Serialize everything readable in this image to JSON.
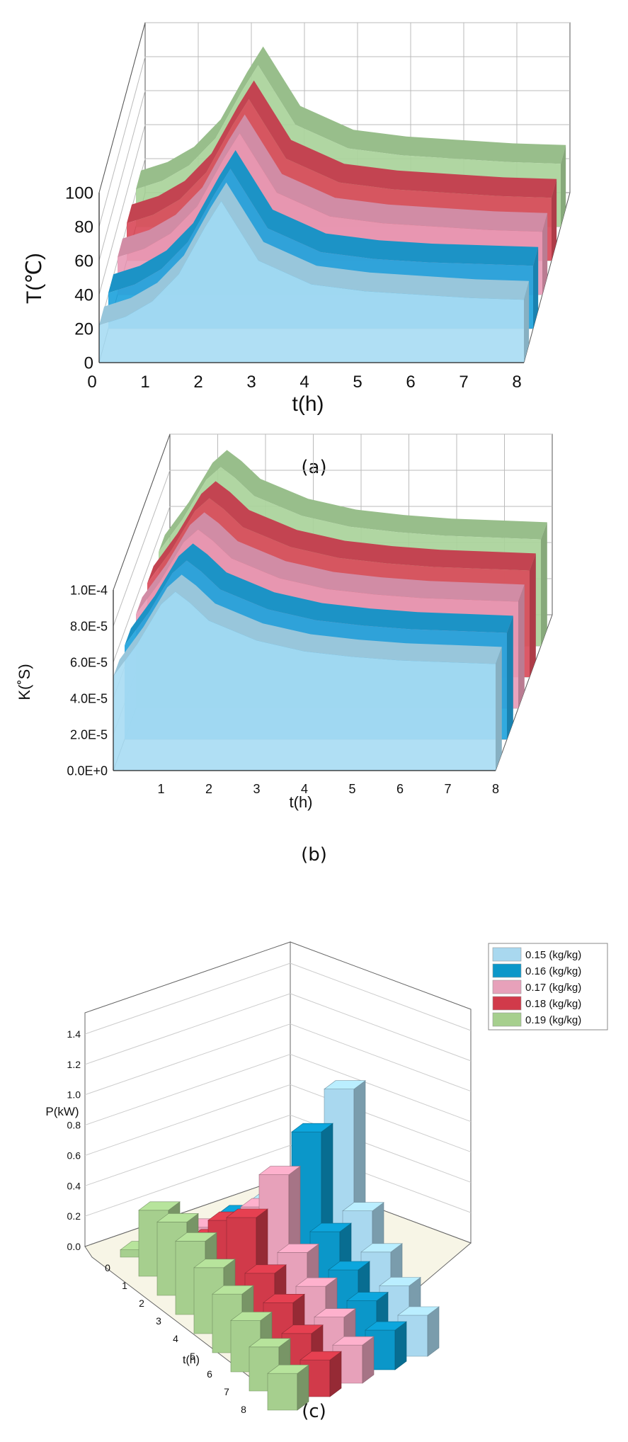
{
  "captions": {
    "a": "(a)",
    "b": "(b)",
    "c": "(c)"
  },
  "chart_data": [
    {
      "type": "area",
      "view": "3d-ribbon",
      "xlabel": "t(h)",
      "ylabel": "T(℃)",
      "xticks": [
        "0",
        "1",
        "2",
        "3",
        "4",
        "5",
        "6",
        "7",
        "8"
      ],
      "yticks": [
        "0",
        "20",
        "40",
        "60",
        "80",
        "100"
      ],
      "xlim": [
        0,
        8
      ],
      "ylim": [
        0,
        100
      ],
      "grid": true,
      "series": [
        {
          "color": "#a9dcf3",
          "x": [
            0,
            0.5,
            1,
            1.5,
            2,
            2.3,
            2.6,
            3,
            4,
            5,
            6,
            7,
            8
          ],
          "values": [
            22,
            27,
            36,
            52,
            80,
            95,
            80,
            60,
            46,
            42,
            40,
            38,
            37
          ]
        },
        {
          "color": "#1fa3dc",
          "x": [
            0,
            0.5,
            1,
            1.5,
            2,
            2.3,
            2.6,
            3,
            4,
            5,
            6,
            7,
            8
          ],
          "values": [
            21,
            26,
            35,
            51,
            79,
            94,
            79,
            59,
            45,
            41,
            39,
            38,
            37
          ]
        },
        {
          "color": "#e89bb7",
          "x": [
            0,
            0.5,
            1,
            1.5,
            2,
            2.3,
            2.6,
            3,
            4,
            5,
            6,
            7,
            8
          ],
          "values": [
            22,
            27,
            36,
            52,
            80,
            95,
            80,
            60,
            46,
            42,
            40,
            38,
            37
          ]
        },
        {
          "color": "#d94b5a",
          "x": [
            0,
            0.5,
            1,
            1.5,
            2,
            2.3,
            2.6,
            3,
            4,
            5,
            6,
            7,
            8
          ],
          "values": [
            22,
            27,
            36,
            52,
            80,
            95,
            80,
            60,
            46,
            42,
            40,
            38,
            37
          ]
        },
        {
          "color": "#a9d39a",
          "x": [
            0,
            0.5,
            1,
            1.5,
            2,
            2.3,
            2.6,
            3,
            4,
            5,
            6,
            7,
            8
          ],
          "values": [
            22,
            27,
            36,
            52,
            80,
            95,
            80,
            60,
            46,
            42,
            40,
            38,
            37
          ]
        }
      ]
    },
    {
      "type": "area",
      "view": "3d-ribbon",
      "xlabel": "t(h)",
      "ylabel": "K(˚S)",
      "xticks": [
        "1",
        "2",
        "3",
        "4",
        "5",
        "6",
        "7",
        "8"
      ],
      "yticks": [
        "0.0E+0",
        "2.0E-5",
        "4.0E-5",
        "6.0E-5",
        "8.0E-5",
        "1.0E-4"
      ],
      "xlim": [
        0,
        8
      ],
      "ylim": [
        0,
        0.0001
      ],
      "grid": true,
      "series": [
        {
          "color": "#a9dcf3",
          "x": [
            0,
            0.5,
            1,
            1.3,
            1.6,
            2,
            3,
            4,
            5,
            6,
            7,
            8
          ],
          "values": [
            5.2e-05,
            7e-05,
            9.2e-05,
            9.9e-05,
            9.3e-05,
            8.3e-05,
            7.2e-05,
            6.6e-05,
            6.3e-05,
            6.1e-05,
            6e-05,
            5.9e-05
          ]
        },
        {
          "color": "#1fa3dc",
          "x": [
            0,
            0.5,
            1,
            1.3,
            1.6,
            2,
            3,
            4,
            5,
            6,
            7,
            8
          ],
          "values": [
            5.2e-05,
            7e-05,
            9.2e-05,
            9.9e-05,
            9.3e-05,
            8.3e-05,
            7.2e-05,
            6.6e-05,
            6.3e-05,
            6.1e-05,
            6e-05,
            5.9e-05
          ]
        },
        {
          "color": "#e89bb7",
          "x": [
            0,
            0.5,
            1,
            1.3,
            1.6,
            2,
            3,
            4,
            5,
            6,
            7,
            8
          ],
          "values": [
            5.2e-05,
            7e-05,
            9.2e-05,
            9.9e-05,
            9.3e-05,
            8.3e-05,
            7.2e-05,
            6.6e-05,
            6.3e-05,
            6.1e-05,
            6e-05,
            5.9e-05
          ]
        },
        {
          "color": "#d94b5a",
          "x": [
            0,
            0.5,
            1,
            1.3,
            1.6,
            2,
            3,
            4,
            5,
            6,
            7,
            8
          ],
          "values": [
            5.2e-05,
            7e-05,
            9.2e-05,
            9.9e-05,
            9.3e-05,
            8.3e-05,
            7.2e-05,
            6.6e-05,
            6.3e-05,
            6.1e-05,
            6e-05,
            5.9e-05
          ]
        },
        {
          "color": "#a9d39a",
          "x": [
            0,
            0.5,
            1,
            1.3,
            1.6,
            2,
            3,
            4,
            5,
            6,
            7,
            8
          ],
          "values": [
            5.2e-05,
            7e-05,
            9.2e-05,
            9.9e-05,
            9.3e-05,
            8.3e-05,
            7.2e-05,
            6.6e-05,
            6.3e-05,
            6.1e-05,
            6e-05,
            5.9e-05
          ]
        }
      ]
    },
    {
      "type": "bar",
      "view": "3d-bar",
      "xlabel": "t(h)",
      "ylabel": "P(kW)",
      "categories": [
        "0",
        "1",
        "2",
        "3",
        "4",
        "5",
        "6",
        "7",
        "8"
      ],
      "yticks": [
        "0.0",
        "0.2",
        "0.4",
        "0.6",
        "0.8",
        "1.0",
        "1.2",
        "1.4"
      ],
      "ylim": [
        0,
        1.4
      ],
      "grid": true,
      "legend_position": "top-right",
      "series": [
        {
          "name": "0.15 (kg/kg)",
          "color": "#a9d8ef",
          "values": [
            0.02,
            0.08,
            0.3,
            0.55,
            1.3,
            0.6,
            0.45,
            0.35,
            0.28
          ]
        },
        {
          "name": "0.16 (kg/kg)",
          "color": "#0b97c9",
          "values": [
            0.02,
            0.08,
            0.3,
            0.55,
            1.1,
            0.55,
            0.42,
            0.34,
            0.27
          ]
        },
        {
          "name": "0.17 (kg/kg)",
          "color": "#e7a1ba",
          "values": [
            0.02,
            0.08,
            0.3,
            0.55,
            0.9,
            0.5,
            0.4,
            0.32,
            0.26
          ]
        },
        {
          "name": "0.18 (kg/kg)",
          "color": "#d13a4a",
          "values": [
            0.02,
            0.08,
            0.3,
            0.55,
            0.7,
            0.45,
            0.38,
            0.3,
            0.25
          ]
        },
        {
          "name": "0.19 (kg/kg)",
          "color": "#a6cf8e",
          "values": [
            0.05,
            0.45,
            0.5,
            0.5,
            0.45,
            0.4,
            0.35,
            0.3,
            0.25
          ]
        }
      ]
    }
  ]
}
